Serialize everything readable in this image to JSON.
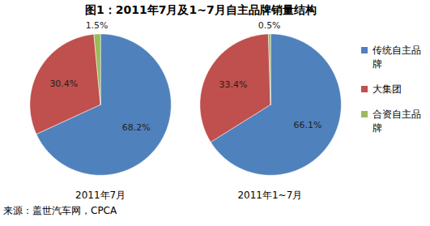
{
  "title": "图1：2011年7月及1~7月自主品牌销量结构",
  "source": "来源：盖世汽车网，CPCA",
  "chart_data": [
    {
      "type": "pie",
      "title": "2011年7月",
      "categories": [
        "传统自主品牌",
        "大集团",
        "合资自主品牌"
      ],
      "values": [
        68.2,
        30.4,
        1.5
      ],
      "value_labels": [
        "68.2%",
        "30.4%",
        "1.5%"
      ],
      "colors": [
        "#4F81BD",
        "#C0504D",
        "#9BBB59"
      ],
      "data_labels": true,
      "legend": "right"
    },
    {
      "type": "pie",
      "title": "2011年1~7月",
      "categories": [
        "传统自主品牌",
        "大集团",
        "合资自主品牌"
      ],
      "values": [
        66.1,
        33.4,
        0.5
      ],
      "value_labels": [
        "66.1%",
        "33.4%",
        "0.5%"
      ],
      "colors": [
        "#4F81BD",
        "#C0504D",
        "#9BBB59"
      ],
      "data_labels": true,
      "legend": "right"
    }
  ]
}
